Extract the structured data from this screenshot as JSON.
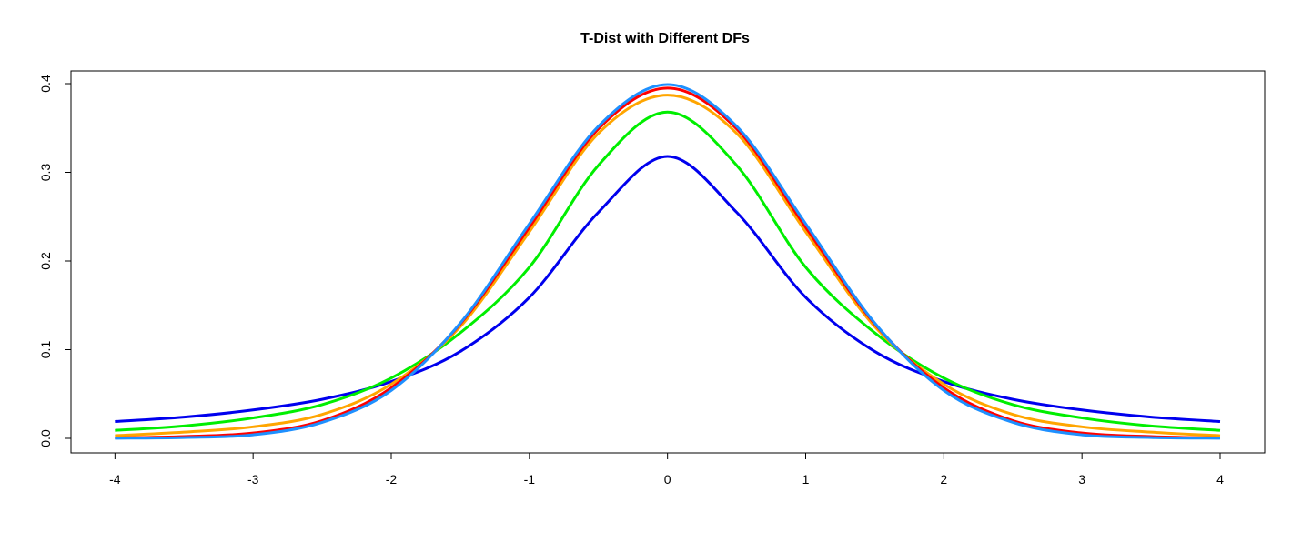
{
  "chart_data": {
    "type": "line",
    "title": "T-Dist with Different DFs",
    "xlabel": "",
    "ylabel": "",
    "xlim": [
      -4,
      4
    ],
    "ylim": [
      0,
      0.4
    ],
    "grid": false,
    "legend": "none",
    "x_ticks": [
      "-4",
      "-3",
      "-2",
      "-1",
      "0",
      "1",
      "2",
      "3",
      "4"
    ],
    "y_ticks": [
      "0.0",
      "0.1",
      "0.2",
      "0.3",
      "0.4"
    ],
    "x": [
      -4,
      -3.5,
      -3,
      -2.5,
      -2,
      -1.5,
      -1,
      -0.5,
      0,
      0.5,
      1,
      1.5,
      2,
      2.5,
      3,
      3.5,
      4
    ],
    "series": [
      {
        "color": "#0000ee",
        "values": [
          0.019,
          0.024,
          0.032,
          0.044,
          0.064,
          0.098,
          0.159,
          0.255,
          0.318,
          0.255,
          0.159,
          0.098,
          0.064,
          0.044,
          0.032,
          0.024,
          0.019
        ]
      },
      {
        "color": "#00ee00",
        "values": [
          0.009,
          0.014,
          0.023,
          0.038,
          0.068,
          0.119,
          0.193,
          0.308,
          0.368,
          0.308,
          0.193,
          0.119,
          0.068,
          0.038,
          0.023,
          0.014,
          0.009
        ]
      },
      {
        "color": "#ffa500",
        "values": [
          0.003,
          0.007,
          0.013,
          0.027,
          0.061,
          0.126,
          0.233,
          0.344,
          0.387,
          0.344,
          0.233,
          0.126,
          0.061,
          0.027,
          0.013,
          0.007,
          0.003
        ]
      },
      {
        "color": "#ff0000",
        "values": [
          0.0005,
          0.002,
          0.006,
          0.02,
          0.057,
          0.129,
          0.238,
          0.349,
          0.395,
          0.349,
          0.238,
          0.129,
          0.057,
          0.02,
          0.006,
          0.002,
          0.0005
        ]
      },
      {
        "color": "#1e90ff",
        "values": [
          0.0001,
          0.0009,
          0.004,
          0.018,
          0.054,
          0.13,
          0.242,
          0.352,
          0.399,
          0.352,
          0.242,
          0.13,
          0.054,
          0.018,
          0.004,
          0.0009,
          0.0001
        ]
      }
    ]
  }
}
